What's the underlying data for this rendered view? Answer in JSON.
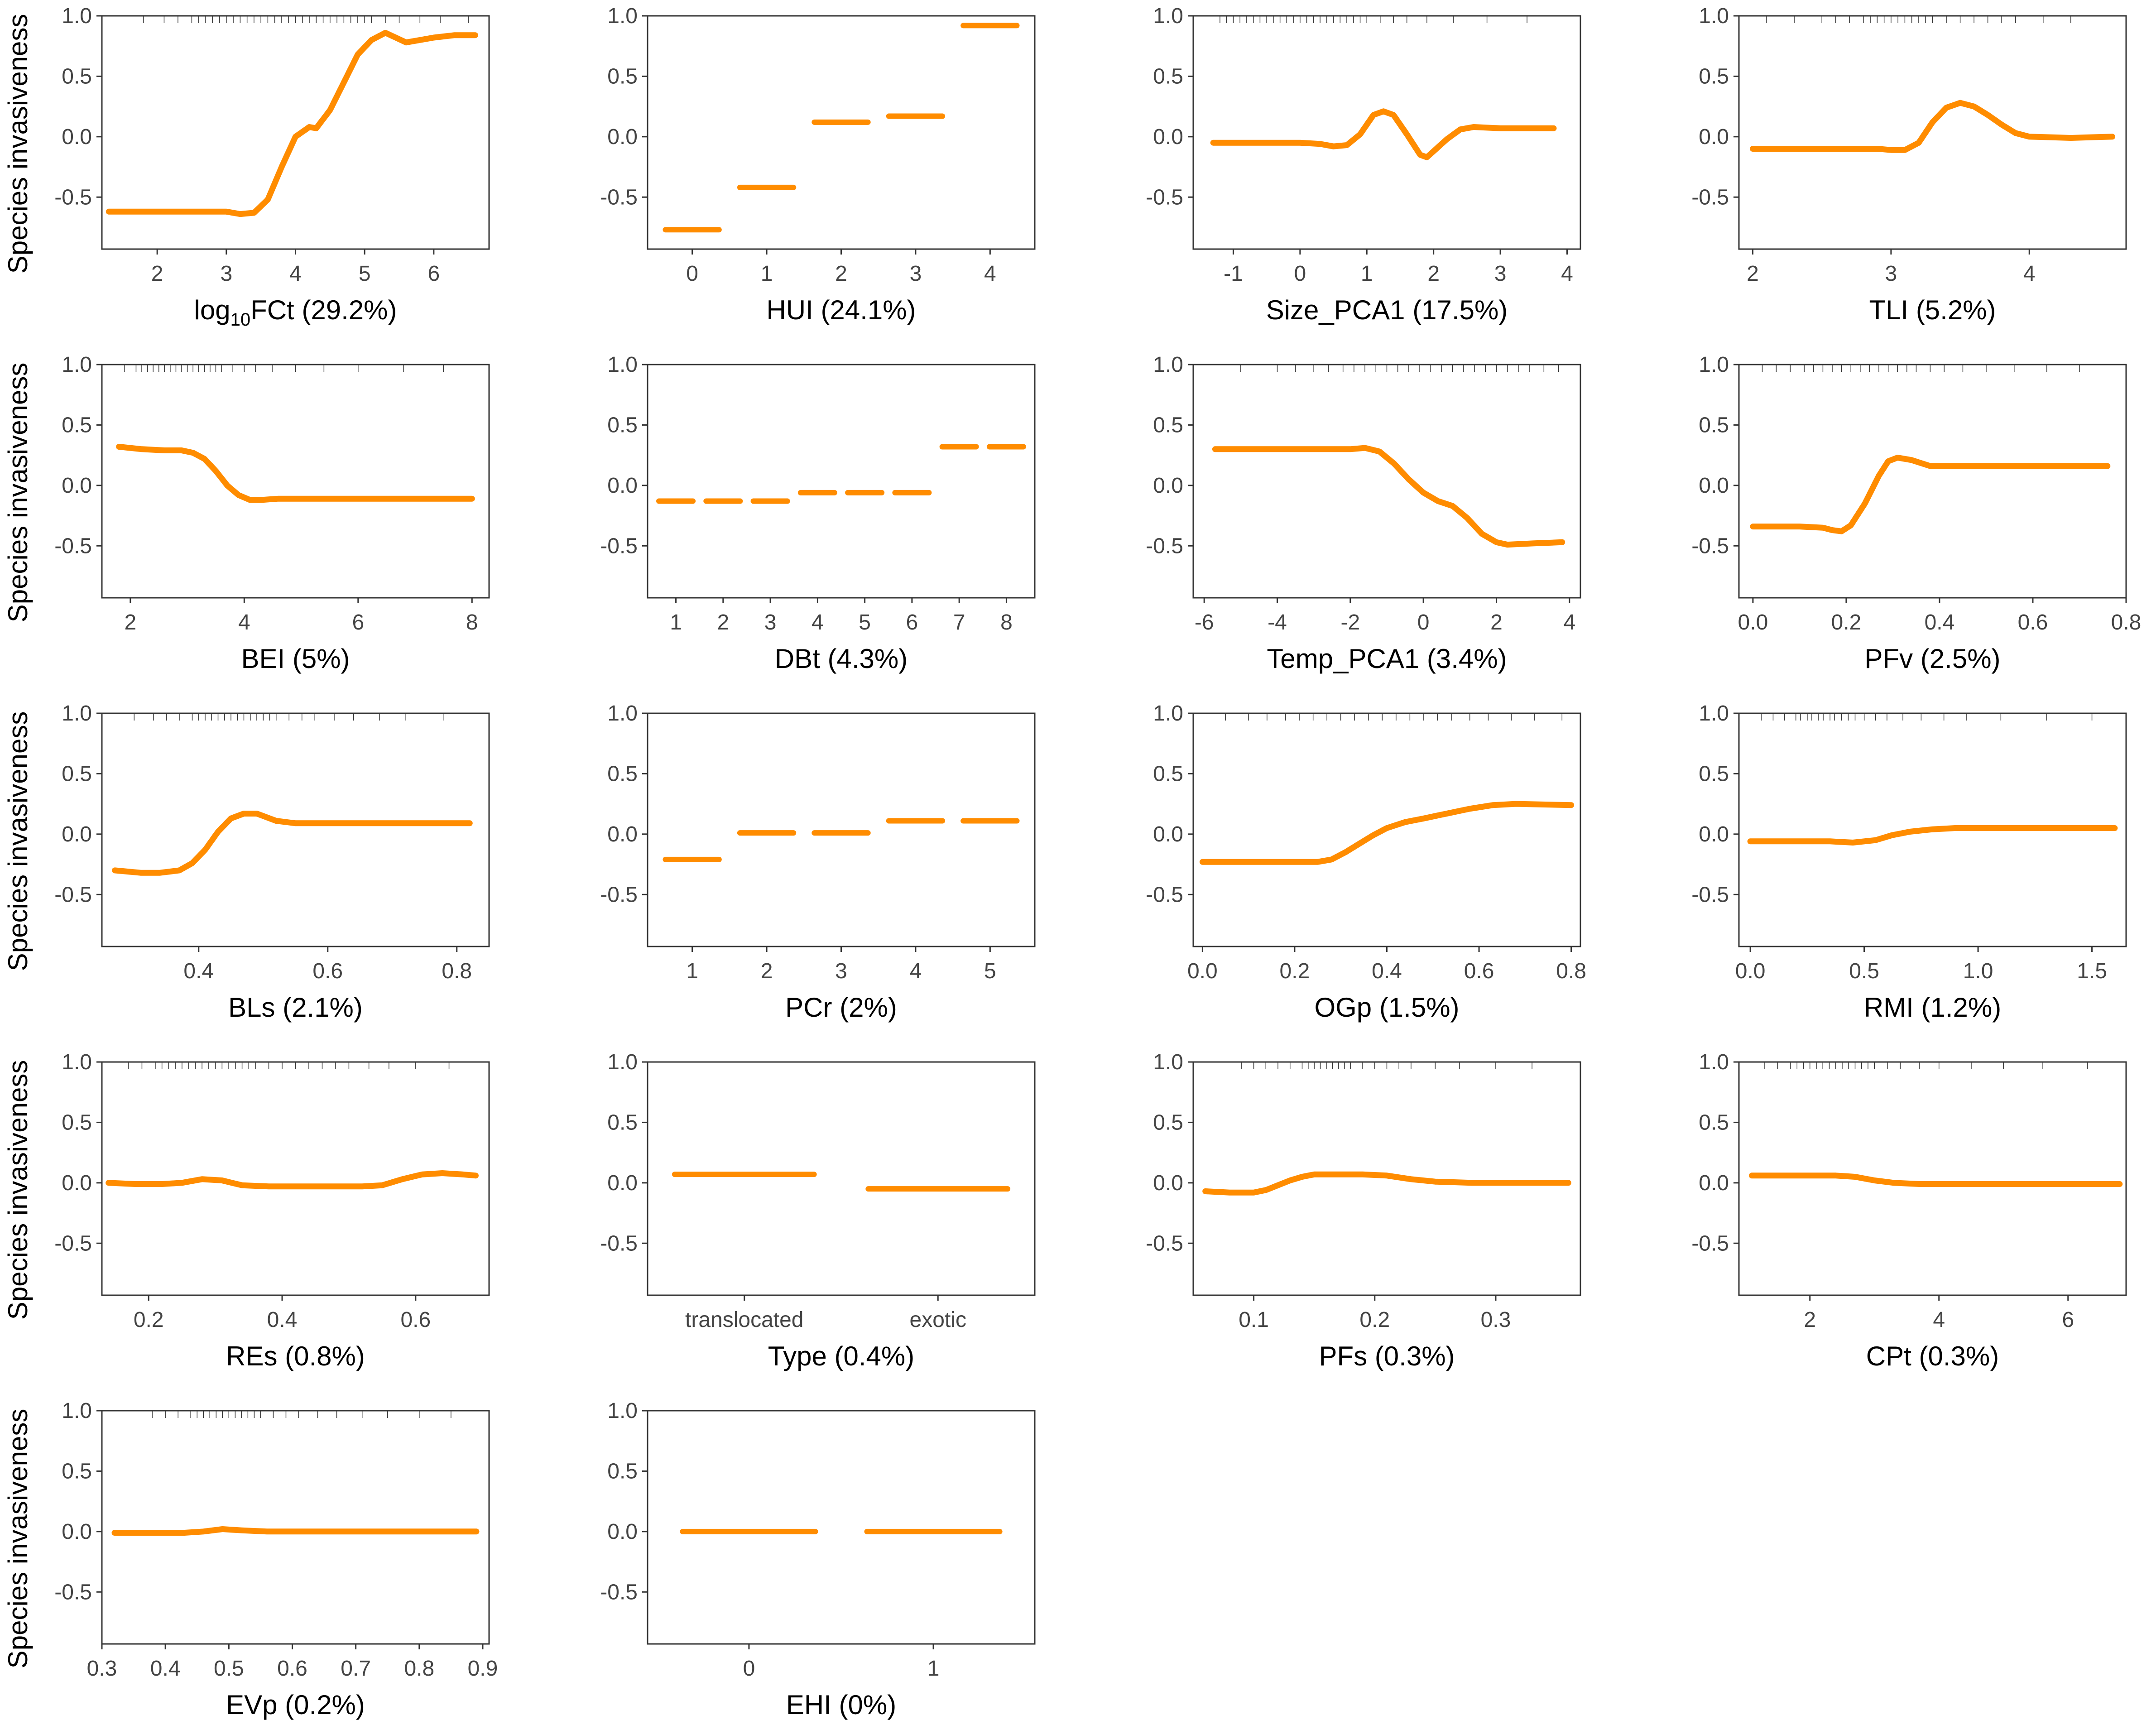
{
  "y_axis": {
    "label": "Species invasiveness",
    "ticks": [
      -0.5,
      0.0,
      0.5,
      1.0
    ],
    "tick_labels": [
      "-0.5",
      "0.0",
      "0.5",
      "1.0"
    ],
    "ylim": [
      -0.93,
      1.0
    ]
  },
  "colors": {
    "curve": "#ff8c00",
    "rug": "#333333",
    "axis": "#333333"
  },
  "chart_data": [
    {
      "type": "line",
      "xlabel": "log₁₀FCt",
      "xlabel_main": "log",
      "xlabel_sub": "10",
      "xlabel_rest": "FCt",
      "importance": "(29.2%)",
      "xlim": [
        1.2,
        6.8
      ],
      "xticks": [
        2,
        3,
        4,
        5,
        6
      ],
      "xtick_labels": [
        "2",
        "3",
        "4",
        "5",
        "6"
      ],
      "x": [
        1.3,
        2.0,
        2.5,
        3.0,
        3.2,
        3.4,
        3.6,
        3.8,
        4.0,
        4.2,
        4.3,
        4.5,
        4.7,
        4.9,
        5.1,
        5.3,
        5.45,
        5.6,
        5.8,
        6.0,
        6.3,
        6.6
      ],
      "y": [
        -0.62,
        -0.62,
        -0.62,
        -0.62,
        -0.64,
        -0.63,
        -0.52,
        -0.25,
        0.0,
        0.08,
        0.07,
        0.22,
        0.45,
        0.68,
        0.8,
        0.86,
        0.82,
        0.78,
        0.8,
        0.82,
        0.84,
        0.84
      ],
      "rug": [
        1.8,
        2.1,
        2.3,
        2.5,
        2.6,
        2.7,
        2.8,
        2.9,
        3.0,
        3.1,
        3.2,
        3.3,
        3.4,
        3.5,
        3.6,
        3.7,
        3.8,
        3.9,
        4.0,
        4.1,
        4.2,
        4.3,
        4.4,
        4.5,
        4.6,
        4.7,
        4.8,
        4.9,
        5.0,
        5.1,
        5.3,
        5.5,
        5.8,
        6.1,
        6.5
      ]
    },
    {
      "type": "step",
      "xlabel": "HUI",
      "importance": "(24.1%)",
      "xlim": [
        -0.6,
        4.6
      ],
      "xticks": [
        0,
        1,
        2,
        3,
        4
      ],
      "xtick_labels": [
        "0",
        "1",
        "2",
        "3",
        "4"
      ],
      "segments": [
        {
          "x": 0,
          "y": -0.77
        },
        {
          "x": 1,
          "y": -0.42
        },
        {
          "x": 2,
          "y": 0.12
        },
        {
          "x": 3,
          "y": 0.17
        },
        {
          "x": 4,
          "y": 0.92
        }
      ],
      "rug": []
    },
    {
      "type": "line",
      "xlabel": "Size_PCA1",
      "importance": "(17.5%)",
      "xlim": [
        -1.6,
        4.2
      ],
      "xticks": [
        -1,
        0,
        1,
        2,
        3,
        4
      ],
      "xtick_labels": [
        "-1",
        "0",
        "1",
        "2",
        "3",
        "4"
      ],
      "x": [
        -1.3,
        -0.5,
        0.0,
        0.3,
        0.5,
        0.7,
        0.9,
        1.1,
        1.25,
        1.4,
        1.6,
        1.8,
        1.9,
        2.0,
        2.2,
        2.4,
        2.6,
        3.0,
        3.5,
        3.8
      ],
      "y": [
        -0.05,
        -0.05,
        -0.05,
        -0.06,
        -0.08,
        -0.07,
        0.02,
        0.18,
        0.21,
        0.18,
        0.02,
        -0.15,
        -0.17,
        -0.12,
        -0.02,
        0.06,
        0.08,
        0.07,
        0.07,
        0.07
      ],
      "rug": [
        -1.2,
        -1.1,
        -1.0,
        -0.9,
        -0.8,
        -0.7,
        -0.6,
        -0.5,
        -0.4,
        -0.3,
        -0.2,
        -0.1,
        0.0,
        0.1,
        0.2,
        0.3,
        0.4,
        0.5,
        0.6,
        0.7,
        0.8,
        0.9,
        1.0,
        1.2,
        1.4,
        1.6,
        1.9,
        2.3,
        2.8,
        3.4
      ]
    },
    {
      "type": "line",
      "xlabel": "TLI",
      "importance": "(5.2%)",
      "xlim": [
        1.9,
        4.7
      ],
      "xticks": [
        2,
        3,
        4
      ],
      "xtick_labels": [
        "2",
        "3",
        "4"
      ],
      "x": [
        2.0,
        2.5,
        2.9,
        3.0,
        3.1,
        3.2,
        3.3,
        3.4,
        3.5,
        3.6,
        3.7,
        3.8,
        3.9,
        4.0,
        4.3,
        4.6
      ],
      "y": [
        -0.1,
        -0.1,
        -0.1,
        -0.11,
        -0.11,
        -0.05,
        0.12,
        0.24,
        0.28,
        0.25,
        0.18,
        0.1,
        0.03,
        0.0,
        -0.01,
        0.0
      ],
      "rug": [
        2.1,
        2.3,
        2.5,
        2.6,
        2.7,
        2.8,
        2.85,
        2.9,
        2.95,
        3.0,
        3.05,
        3.1,
        3.15,
        3.2,
        3.25,
        3.3,
        3.4,
        3.5,
        3.6,
        3.7,
        3.8,
        3.9,
        4.1,
        4.3
      ]
    },
    {
      "type": "line",
      "xlabel": "BEI",
      "importance": "(5%)",
      "xlim": [
        1.5,
        8.3
      ],
      "xticks": [
        2,
        4,
        6,
        8
      ],
      "xtick_labels": [
        "2",
        "4",
        "6",
        "8"
      ],
      "x": [
        1.8,
        2.2,
        2.6,
        2.9,
        3.1,
        3.3,
        3.5,
        3.7,
        3.9,
        4.1,
        4.3,
        4.6,
        5.5,
        6.5,
        7.5,
        8.0
      ],
      "y": [
        0.32,
        0.3,
        0.29,
        0.29,
        0.27,
        0.22,
        0.12,
        0.0,
        -0.08,
        -0.12,
        -0.12,
        -0.11,
        -0.11,
        -0.11,
        -0.11,
        -0.11
      ],
      "rug": [
        1.9,
        2.1,
        2.2,
        2.3,
        2.4,
        2.5,
        2.6,
        2.7,
        2.8,
        2.9,
        3.0,
        3.1,
        3.2,
        3.3,
        3.4,
        3.5,
        3.6,
        3.8,
        4.0,
        4.2,
        4.5,
        4.9,
        5.4,
        6.0,
        6.8,
        7.5
      ]
    },
    {
      "type": "step",
      "xlabel": "DBt",
      "importance": "(4.3%)",
      "xlim": [
        0.4,
        8.6
      ],
      "xticks": [
        1,
        2,
        3,
        4,
        5,
        6,
        7,
        8
      ],
      "xtick_labels": [
        "1",
        "2",
        "3",
        "4",
        "5",
        "6",
        "7",
        "8"
      ],
      "segments": [
        {
          "x": 1,
          "y": -0.13
        },
        {
          "x": 2,
          "y": -0.13
        },
        {
          "x": 3,
          "y": -0.13
        },
        {
          "x": 4,
          "y": -0.06
        },
        {
          "x": 5,
          "y": -0.06
        },
        {
          "x": 6,
          "y": -0.06
        },
        {
          "x": 7,
          "y": 0.32
        },
        {
          "x": 8,
          "y": 0.32
        }
      ],
      "rug": []
    },
    {
      "type": "line",
      "xlabel": "Temp_PCA1",
      "importance": "(3.4%)",
      "xlim": [
        -6.3,
        4.3
      ],
      "xticks": [
        -6,
        -4,
        -2,
        0,
        2,
        4
      ],
      "xtick_labels": [
        "-6",
        "-4",
        "-2",
        "0",
        "2",
        "4"
      ],
      "x": [
        -5.7,
        -4.0,
        -2.5,
        -2.0,
        -1.6,
        -1.2,
        -0.8,
        -0.4,
        0.0,
        0.4,
        0.8,
        1.2,
        1.6,
        2.0,
        2.3,
        3.0,
        3.8
      ],
      "y": [
        0.3,
        0.3,
        0.3,
        0.3,
        0.31,
        0.28,
        0.18,
        0.05,
        -0.06,
        -0.13,
        -0.17,
        -0.27,
        -0.4,
        -0.47,
        -0.49,
        -0.48,
        -0.47
      ],
      "rug": [
        -5.0,
        -4.0,
        -3.5,
        -3.0,
        -2.6,
        -2.2,
        -1.9,
        -1.6,
        -1.3,
        -1.0,
        -0.7,
        -0.4,
        -0.1,
        0.2,
        0.5,
        0.8,
        1.1,
        1.4,
        1.7,
        2.0,
        2.3,
        2.6,
        2.9,
        3.3,
        3.7
      ]
    },
    {
      "type": "line",
      "xlabel": "PFv",
      "importance": "(2.5%)",
      "xlim": [
        -0.03,
        0.8
      ],
      "xticks": [
        0.0,
        0.2,
        0.4,
        0.6,
        0.8
      ],
      "xtick_labels": [
        "0.0",
        "0.2",
        "0.4",
        "0.6",
        "0.8"
      ],
      "x": [
        0.0,
        0.1,
        0.15,
        0.17,
        0.19,
        0.21,
        0.24,
        0.27,
        0.29,
        0.31,
        0.34,
        0.38,
        0.42,
        0.5,
        0.6,
        0.76
      ],
      "y": [
        -0.34,
        -0.34,
        -0.35,
        -0.37,
        -0.38,
        -0.33,
        -0.15,
        0.08,
        0.2,
        0.23,
        0.21,
        0.16,
        0.16,
        0.16,
        0.16,
        0.16
      ],
      "rug": [
        0.02,
        0.05,
        0.08,
        0.11,
        0.13,
        0.15,
        0.17,
        0.19,
        0.21,
        0.23,
        0.25,
        0.27,
        0.29,
        0.31,
        0.33,
        0.35,
        0.38,
        0.41,
        0.45,
        0.5,
        0.56,
        0.63,
        0.7
      ]
    },
    {
      "type": "line",
      "xlabel": "BLs",
      "importance": "(2.1%)",
      "xlim": [
        0.25,
        0.85
      ],
      "xticks": [
        0.4,
        0.6,
        0.8
      ],
      "xtick_labels": [
        "0.4",
        "0.6",
        "0.8"
      ],
      "x": [
        0.27,
        0.31,
        0.34,
        0.37,
        0.39,
        0.41,
        0.43,
        0.45,
        0.47,
        0.49,
        0.5,
        0.52,
        0.55,
        0.6,
        0.7,
        0.82
      ],
      "y": [
        -0.3,
        -0.32,
        -0.32,
        -0.3,
        -0.24,
        -0.13,
        0.02,
        0.13,
        0.17,
        0.17,
        0.15,
        0.11,
        0.09,
        0.09,
        0.09,
        0.09
      ],
      "rug": [
        0.3,
        0.33,
        0.35,
        0.37,
        0.39,
        0.4,
        0.41,
        0.42,
        0.43,
        0.44,
        0.45,
        0.46,
        0.47,
        0.48,
        0.49,
        0.5,
        0.51,
        0.52,
        0.54,
        0.56,
        0.58,
        0.61,
        0.64,
        0.68,
        0.72,
        0.78
      ]
    },
    {
      "type": "step",
      "xlabel": "PCr",
      "importance": "(2%)",
      "xlim": [
        0.4,
        5.6
      ],
      "xticks": [
        1,
        2,
        3,
        4,
        5
      ],
      "xtick_labels": [
        "1",
        "2",
        "3",
        "4",
        "5"
      ],
      "segments": [
        {
          "x": 1,
          "y": -0.21
        },
        {
          "x": 2,
          "y": 0.01
        },
        {
          "x": 3,
          "y": 0.01
        },
        {
          "x": 4,
          "y": 0.11
        },
        {
          "x": 5,
          "y": 0.11
        }
      ],
      "rug": []
    },
    {
      "type": "line",
      "xlabel": "OGp",
      "importance": "(1.5%)",
      "xlim": [
        -0.02,
        0.82
      ],
      "xticks": [
        0.0,
        0.2,
        0.4,
        0.6,
        0.8
      ],
      "xtick_labels": [
        "0.0",
        "0.2",
        "0.4",
        "0.6",
        "0.8"
      ],
      "x": [
        0.0,
        0.1,
        0.2,
        0.25,
        0.28,
        0.31,
        0.34,
        0.37,
        0.4,
        0.44,
        0.48,
        0.53,
        0.58,
        0.63,
        0.68,
        0.8
      ],
      "y": [
        -0.23,
        -0.23,
        -0.23,
        -0.23,
        -0.21,
        -0.15,
        -0.08,
        -0.01,
        0.05,
        0.1,
        0.13,
        0.17,
        0.21,
        0.24,
        0.25,
        0.24
      ],
      "rug": [
        0.05,
        0.1,
        0.14,
        0.18,
        0.21,
        0.24,
        0.27,
        0.3,
        0.33,
        0.36,
        0.39,
        0.42,
        0.45,
        0.48,
        0.51,
        0.54,
        0.58,
        0.62,
        0.67,
        0.72,
        0.78
      ]
    },
    {
      "type": "line",
      "xlabel": "RMI",
      "importance": "(1.2%)",
      "xlim": [
        -0.05,
        1.65
      ],
      "xticks": [
        0.0,
        0.5,
        1.0,
        1.5
      ],
      "xtick_labels": [
        "0.0",
        "0.5",
        "1.0",
        "1.5"
      ],
      "x": [
        0.0,
        0.2,
        0.35,
        0.45,
        0.55,
        0.62,
        0.7,
        0.8,
        0.9,
        1.0,
        1.2,
        1.4,
        1.6
      ],
      "y": [
        -0.06,
        -0.06,
        -0.06,
        -0.07,
        -0.05,
        -0.01,
        0.02,
        0.04,
        0.05,
        0.05,
        0.05,
        0.05,
        0.05
      ],
      "rug": [
        0.05,
        0.1,
        0.15,
        0.2,
        0.22,
        0.25,
        0.27,
        0.3,
        0.32,
        0.35,
        0.37,
        0.4,
        0.43,
        0.46,
        0.5,
        0.55,
        0.6,
        0.67,
        0.75,
        0.85,
        0.95,
        1.1,
        1.3,
        1.5
      ]
    },
    {
      "type": "line",
      "xlabel": "REs",
      "importance": "(0.8%)",
      "xlim": [
        0.13,
        0.71
      ],
      "xticks": [
        0.2,
        0.4,
        0.6
      ],
      "xtick_labels": [
        "0.2",
        "0.4",
        "0.6"
      ],
      "x": [
        0.14,
        0.18,
        0.22,
        0.25,
        0.28,
        0.31,
        0.34,
        0.38,
        0.42,
        0.47,
        0.52,
        0.55,
        0.58,
        0.61,
        0.64,
        0.67,
        0.69
      ],
      "y": [
        0.0,
        -0.01,
        -0.01,
        0.0,
        0.03,
        0.02,
        -0.02,
        -0.03,
        -0.03,
        -0.03,
        -0.03,
        -0.02,
        0.03,
        0.07,
        0.08,
        0.07,
        0.06
      ],
      "rug": [
        0.17,
        0.19,
        0.21,
        0.22,
        0.23,
        0.24,
        0.25,
        0.26,
        0.27,
        0.28,
        0.29,
        0.3,
        0.31,
        0.32,
        0.33,
        0.34,
        0.35,
        0.36,
        0.38,
        0.4,
        0.42,
        0.44,
        0.46,
        0.48,
        0.5,
        0.53,
        0.56,
        0.6,
        0.65
      ]
    },
    {
      "type": "step",
      "xlabel": "Type",
      "importance": "(0.4%)",
      "xlim": [
        0.5,
        2.5
      ],
      "xticks": [
        1,
        2
      ],
      "xtick_labels": [
        "translocated",
        "exotic"
      ],
      "segments": [
        {
          "x": 1,
          "y": 0.07
        },
        {
          "x": 2,
          "y": -0.05
        }
      ],
      "rug": []
    },
    {
      "type": "line",
      "xlabel": "PFs",
      "importance": "(0.3%)",
      "xlim": [
        0.05,
        0.37
      ],
      "xticks": [
        0.1,
        0.2,
        0.3
      ],
      "xtick_labels": [
        "0.1",
        "0.2",
        "0.3"
      ],
      "x": [
        0.06,
        0.08,
        0.1,
        0.11,
        0.12,
        0.13,
        0.14,
        0.15,
        0.17,
        0.19,
        0.21,
        0.23,
        0.25,
        0.28,
        0.32,
        0.36
      ],
      "y": [
        -0.07,
        -0.08,
        -0.08,
        -0.06,
        -0.02,
        0.02,
        0.05,
        0.07,
        0.07,
        0.07,
        0.06,
        0.03,
        0.01,
        0.0,
        0.0,
        0.0
      ],
      "rug": [
        0.09,
        0.1,
        0.11,
        0.12,
        0.13,
        0.14,
        0.145,
        0.15,
        0.155,
        0.16,
        0.165,
        0.17,
        0.175,
        0.18,
        0.19,
        0.2,
        0.21,
        0.22,
        0.23,
        0.25,
        0.27,
        0.3,
        0.33
      ]
    },
    {
      "type": "line",
      "xlabel": "CPt",
      "importance": "(0.3%)",
      "xlim": [
        0.9,
        6.9
      ],
      "xticks": [
        2,
        4,
        6
      ],
      "xtick_labels": [
        "2",
        "4",
        "6"
      ],
      "x": [
        1.1,
        1.6,
        2.0,
        2.4,
        2.7,
        3.0,
        3.3,
        3.7,
        4.5,
        5.5,
        6.8
      ],
      "y": [
        0.06,
        0.06,
        0.06,
        0.06,
        0.05,
        0.02,
        0.0,
        -0.01,
        -0.01,
        -0.01,
        -0.01
      ],
      "rug": [
        1.3,
        1.5,
        1.7,
        1.8,
        1.9,
        2.0,
        2.1,
        2.2,
        2.3,
        2.4,
        2.5,
        2.6,
        2.7,
        2.8,
        2.9,
        3.0,
        3.2,
        3.4,
        3.7,
        4.0,
        4.5,
        5.0,
        5.6,
        6.3
      ]
    },
    {
      "type": "line",
      "xlabel": "EVp",
      "importance": "(0.2%)",
      "xlim": [
        0.3,
        0.91
      ],
      "xticks": [
        0.3,
        0.4,
        0.5,
        0.6,
        0.7,
        0.8,
        0.9
      ],
      "xtick_labels": [
        "0.3",
        "0.4",
        "0.5",
        "0.6",
        "0.7",
        "0.8",
        "0.9"
      ],
      "x": [
        0.32,
        0.38,
        0.43,
        0.46,
        0.49,
        0.52,
        0.56,
        0.65,
        0.75,
        0.89
      ],
      "y": [
        -0.01,
        -0.01,
        -0.01,
        0.0,
        0.02,
        0.01,
        0.0,
        0.0,
        0.0,
        0.0
      ],
      "rug": [
        0.38,
        0.4,
        0.42,
        0.44,
        0.45,
        0.46,
        0.47,
        0.48,
        0.49,
        0.5,
        0.51,
        0.52,
        0.53,
        0.54,
        0.55,
        0.57,
        0.59,
        0.61,
        0.64,
        0.67,
        0.71,
        0.75,
        0.8,
        0.85
      ]
    },
    {
      "type": "step",
      "xlabel": "EHI",
      "importance": "(0%)",
      "xlim": [
        -0.55,
        1.55
      ],
      "xticks": [
        0,
        1
      ],
      "xtick_labels": [
        "0",
        "1"
      ],
      "segments": [
        {
          "x": 0,
          "y": 0.0
        },
        {
          "x": 1,
          "y": 0.0
        }
      ],
      "rug": []
    }
  ]
}
